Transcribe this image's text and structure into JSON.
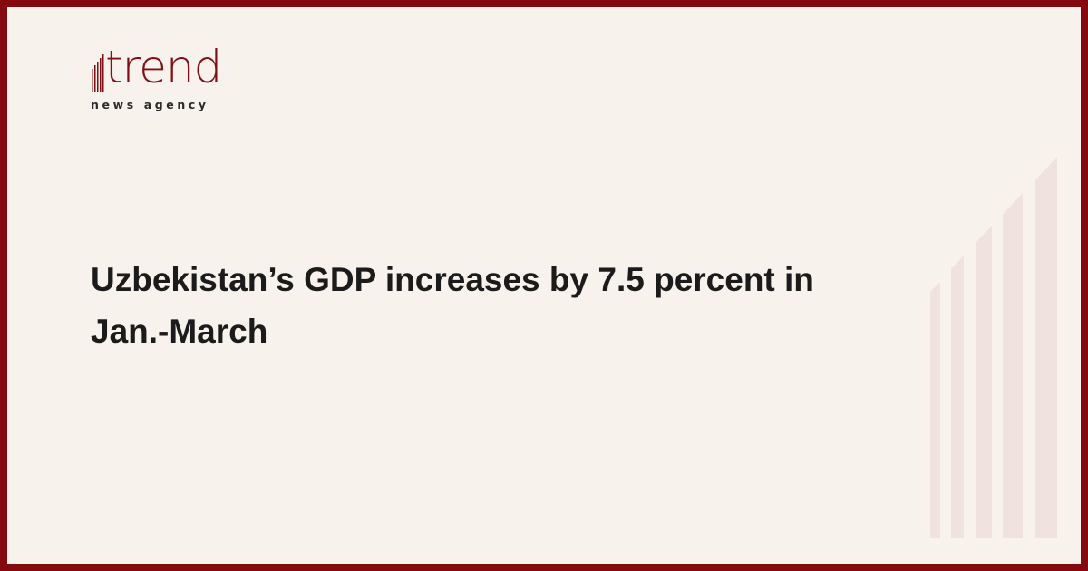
{
  "brand": {
    "name": "trend",
    "tagline": "news agency",
    "color": "#850a10"
  },
  "article": {
    "headline": "Uzbekistan’s GDP increases by 7.5 percent in Jan.-March"
  },
  "colors": {
    "background": "#f7f2ec",
    "border": "#850a10",
    "decor_bars": "#f0e2de"
  }
}
